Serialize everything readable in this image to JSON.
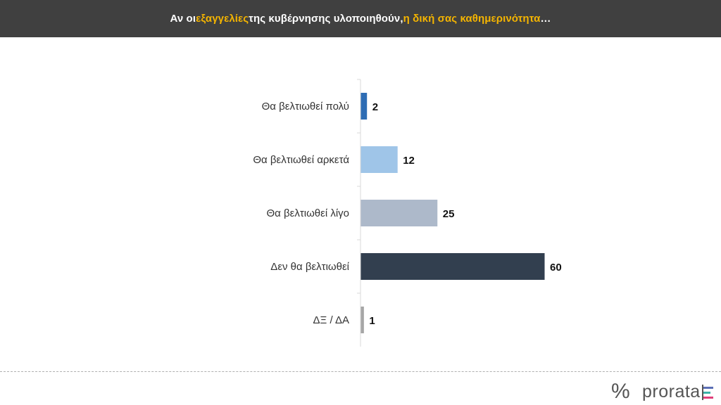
{
  "header": {
    "parts": [
      {
        "text": "Αν οι ",
        "highlight": false
      },
      {
        "text": "εξαγγελίες",
        "highlight": true
      },
      {
        "text": " της κυβέρνησης υλοποιηθούν, ",
        "highlight": false
      },
      {
        "text": "η δική σας καθημερινότητα",
        "highlight": true
      },
      {
        "text": "…",
        "highlight": false
      }
    ],
    "highlight_color": "#f4b400"
  },
  "brand": {
    "symbol": "%",
    "name": "prorata",
    "bar_colors": [
      "#5b6fb5",
      "#3bb3a8",
      "#e0407a"
    ]
  },
  "chart_data": {
    "type": "bar",
    "orientation": "horizontal",
    "categories": [
      "Θα βελτιωθεί πολύ",
      "Θα βελτιωθεί αρκετά",
      "Θα βελτιωθεί λίγο",
      "Δεν θα βελτιωθεί",
      "ΔΞ / ΔΑ"
    ],
    "values": [
      2,
      12,
      25,
      60,
      1
    ],
    "colors": [
      "#2e6db4",
      "#9fc5e8",
      "#adb9ca",
      "#323f4f",
      "#a6a6a6"
    ],
    "xlim": [
      0,
      60
    ],
    "grid": false,
    "data_labels": true
  }
}
